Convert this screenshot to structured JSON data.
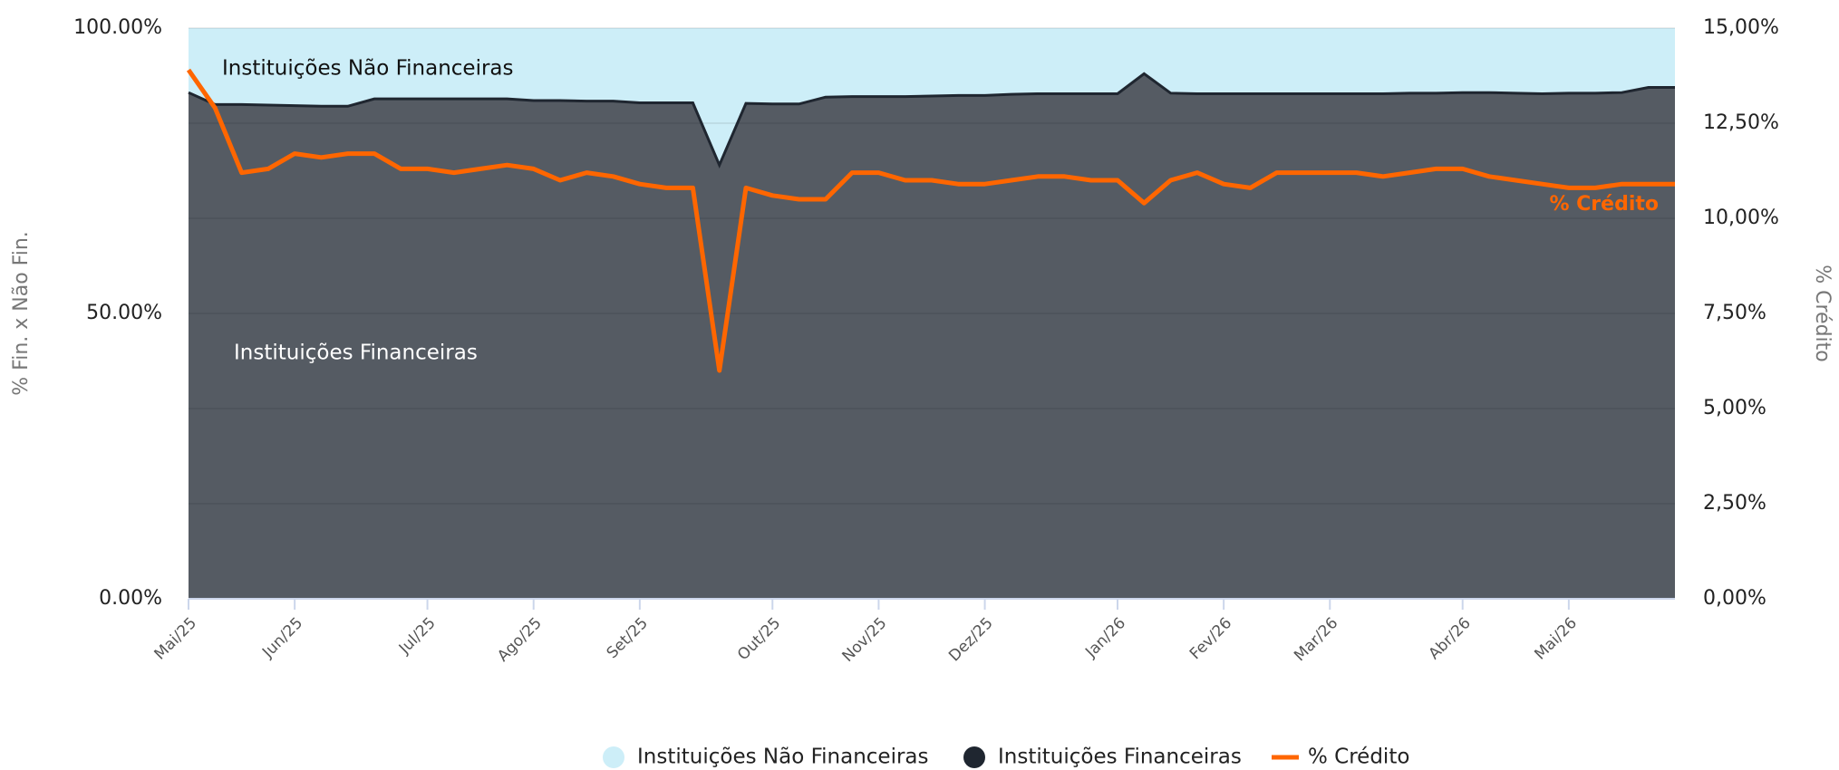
{
  "chart_data": {
    "type": "stacked-area-line",
    "ylabel": "% Fin. x Não Fin.",
    "y2label": "% Crédito",
    "categories": [
      "Mai/25",
      null,
      null,
      null,
      "Jun/25",
      null,
      null,
      null,
      null,
      "Jul/25",
      null,
      null,
      null,
      "Ago/25",
      null,
      null,
      null,
      "Set/25",
      null,
      null,
      null,
      null,
      "Out/25",
      null,
      null,
      null,
      "Nov/25",
      null,
      null,
      null,
      "Dez/25",
      null,
      null,
      null,
      null,
      "Jan/26",
      null,
      null,
      null,
      "Fev/26",
      null,
      null,
      null,
      "Mar/26",
      null,
      null,
      null,
      null,
      "Abr/26",
      null,
      null,
      null,
      "Mai/26",
      null,
      null,
      null,
      null
    ],
    "series": [
      {
        "name": "Instituições Financeiras",
        "color": "#1f2630",
        "fill": "#555b63",
        "stack": true,
        "values": [
          88.7,
          86.6,
          86.6,
          86.5,
          86.4,
          86.3,
          86.3,
          87.6,
          87.6,
          87.6,
          87.6,
          87.6,
          87.6,
          87.3,
          87.3,
          87.2,
          87.2,
          86.9,
          86.9,
          86.9,
          76.0,
          86.8,
          86.7,
          86.7,
          87.9,
          88.0,
          88.0,
          88.0,
          88.1,
          88.2,
          88.2,
          88.4,
          88.5,
          88.5,
          88.5,
          88.5,
          92.0,
          88.6,
          88.5,
          88.5,
          88.5,
          88.5,
          88.5,
          88.5,
          88.5,
          88.5,
          88.6,
          88.6,
          88.7,
          88.7,
          88.6,
          88.5,
          88.6,
          88.6,
          88.7,
          89.6,
          89.6
        ]
      },
      {
        "name": "Instituições Não Financeiras",
        "color": "#cdeef8",
        "fill": "#cdeef8",
        "stack": true,
        "values": [
          11.3,
          13.4,
          13.4,
          13.5,
          13.6,
          13.7,
          13.7,
          12.4,
          12.4,
          12.4,
          12.4,
          12.4,
          12.4,
          12.7,
          12.7,
          12.8,
          12.8,
          13.1,
          13.1,
          13.1,
          24.0,
          13.2,
          13.3,
          13.3,
          12.1,
          12.0,
          12.0,
          12.0,
          11.9,
          11.8,
          11.8,
          11.6,
          11.5,
          11.5,
          11.5,
          11.5,
          8.0,
          11.4,
          11.5,
          11.5,
          11.5,
          11.5,
          11.5,
          11.5,
          11.5,
          11.5,
          11.4,
          11.4,
          11.3,
          11.3,
          11.4,
          11.5,
          11.4,
          11.4,
          11.3,
          10.4,
          10.4
        ]
      },
      {
        "name": "% Crédito",
        "color": "#ff6600",
        "axis": "y2",
        "values": [
          13.9,
          12.9,
          11.2,
          11.3,
          11.7,
          11.6,
          11.7,
          11.7,
          11.3,
          11.3,
          11.2,
          11.3,
          11.4,
          11.3,
          11.0,
          11.2,
          11.1,
          10.9,
          10.8,
          10.8,
          6.0,
          10.8,
          10.6,
          10.5,
          10.5,
          11.2,
          11.2,
          11.0,
          11.0,
          10.9,
          10.9,
          11.0,
          11.1,
          11.1,
          11.0,
          11.0,
          10.4,
          11.0,
          11.2,
          10.9,
          10.8,
          11.2,
          11.2,
          11.2,
          11.2,
          11.1,
          11.2,
          11.3,
          11.3,
          11.1,
          11.0,
          10.9,
          10.8,
          10.8,
          10.9,
          10.9,
          10.9
        ]
      }
    ],
    "ylim": [
      0,
      100
    ],
    "yticks": [
      {
        "value": 0,
        "label": "0.00%"
      },
      {
        "value": 50,
        "label": "50.00%"
      },
      {
        "value": 100,
        "label": "100.00%"
      }
    ],
    "y2lim": [
      0,
      15
    ],
    "y2ticks": [
      {
        "value": 0,
        "label": "0,00%"
      },
      {
        "value": 2.5,
        "label": "2,50%"
      },
      {
        "value": 5,
        "label": "5,00%"
      },
      {
        "value": 7.5,
        "label": "7,50%"
      },
      {
        "value": 10,
        "label": "10,00%"
      },
      {
        "value": 12.5,
        "label": "12,50%"
      },
      {
        "value": 15,
        "label": "15,00%"
      }
    ],
    "grid": true,
    "legend": "bottom"
  }
}
